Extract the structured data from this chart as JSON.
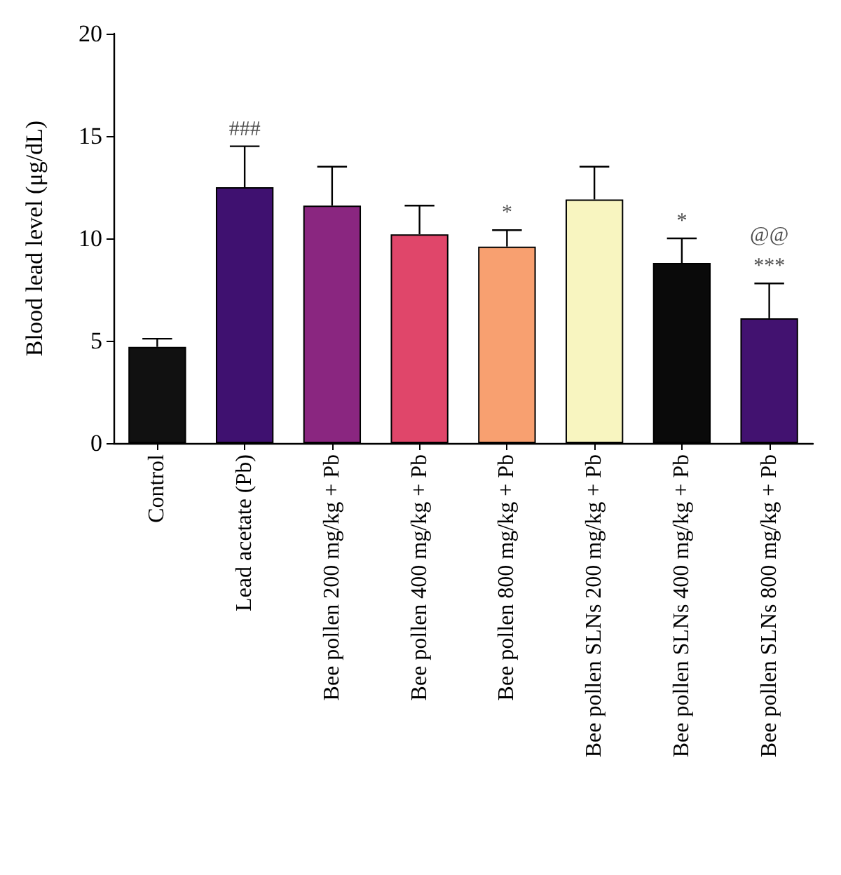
{
  "chart_data": {
    "type": "bar",
    "ylabel": "Blood lead level (μg/dL)",
    "categories": [
      "Control",
      "Lead acetate (Pb)",
      "Bee pollen 200 mg/kg + Pb",
      "Bee pollen 400 mg/kg + Pb",
      "Bee pollen 800 mg/kg + Pb",
      "Bee pollen SLNs 200 mg/kg + Pb",
      "Bee pollen SLNs 400 mg/kg + Pb",
      "Bee pollen SLNs 800 mg/kg + Pb"
    ],
    "values": [
      4.7,
      12.5,
      11.6,
      10.2,
      9.6,
      11.9,
      8.8,
      6.1
    ],
    "errors": [
      0.4,
      2.0,
      1.9,
      1.4,
      0.8,
      1.6,
      1.2,
      1.7
    ],
    "colors": [
      "#111111",
      "#3f1170",
      "#8a2680",
      "#e0466a",
      "#f8a070",
      "#f8f5c0",
      "#0a0a0a",
      "#421270"
    ],
    "ylim": [
      0,
      20
    ],
    "yticks": [
      0,
      5,
      10,
      15,
      20
    ],
    "grid": false,
    "annotations": [
      {
        "text": "###",
        "x": "Lead acetate (Pb)",
        "y": 14.5
      },
      {
        "text": "*",
        "x": "Bee pollen 800 mg/kg + Pb",
        "y": 10.4
      },
      {
        "text": "*",
        "x": "Bee pollen SLNs 400 mg/kg + Pb",
        "y": 10.0
      },
      {
        "text": "@@",
        "x": "Bee pollen SLNs 800 mg/kg + Pb",
        "y": 7.8
      },
      {
        "text": "***",
        "x": "Bee pollen SLNs 800 mg/kg + Pb",
        "y": 7.8
      }
    ]
  }
}
